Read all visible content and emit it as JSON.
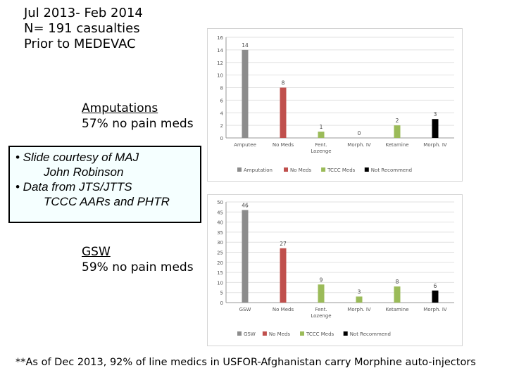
{
  "header": {
    "line1": "Jul 2013- Feb 2014",
    "line2": "N= 191 casualties",
    "line3": "Prior to MEDEVAC"
  },
  "amputations_label": {
    "title": "Amputations",
    "subtitle": "57% no pain meds"
  },
  "gsw_label": {
    "title": "GSW",
    "subtitle": "59% no pain meds"
  },
  "note": {
    "bullet1_a": "• Slide courtesy of MAJ",
    "bullet1_b": "John Robinson",
    "bullet2_a": "• Data from JTS/JTTS",
    "bullet2_b": "TCCC AARs and PHTR"
  },
  "footer": "**As of Dec 2013, 92% of line medics in USFOR-Afghanistan carry Morphine auto-injectors",
  "colors": {
    "gray": "#8c8c8c",
    "red": "#c0504d",
    "green": "#9bbb59",
    "black": "#000000"
  },
  "chart_data": [
    {
      "type": "bar",
      "categories": [
        "Amputee",
        "No Meds",
        "Fent. Lozenge",
        "Morph. IV",
        "Ketamine",
        "Morph. IV"
      ],
      "values": [
        14,
        8,
        1,
        0,
        2,
        3
      ],
      "value_labels": [
        "14",
        "8",
        "1",
        "0",
        "2",
        "3"
      ],
      "bar_colors": [
        "gray",
        "red",
        "green",
        "green",
        "green",
        "black"
      ],
      "ylim": [
        0,
        16
      ],
      "yticks": [
        0,
        2,
        4,
        6,
        8,
        10,
        12,
        14,
        16
      ],
      "legend": [
        "Amputation",
        "No Meds",
        "TCCC Meds",
        "Not Recommend"
      ],
      "legend_position": "bottom",
      "grid": true
    },
    {
      "type": "bar",
      "categories": [
        "GSW",
        "No Meds",
        "Fent. Lozenge",
        "Morph. IV",
        "Ketamine",
        "Morph. IV"
      ],
      "values": [
        46,
        27,
        9,
        3,
        8,
        6
      ],
      "value_labels": [
        "46",
        "27",
        "9",
        "3",
        "8",
        "6"
      ],
      "bar_colors": [
        "gray",
        "red",
        "green",
        "green",
        "green",
        "black"
      ],
      "ylim": [
        0,
        50
      ],
      "yticks": [
        0,
        5,
        10,
        15,
        20,
        25,
        30,
        35,
        40,
        45,
        50
      ],
      "legend": [
        "GSW",
        "No Meds",
        "TCCC Meds",
        "Not Recommend"
      ],
      "legend_position": "bottom",
      "grid": true
    }
  ]
}
